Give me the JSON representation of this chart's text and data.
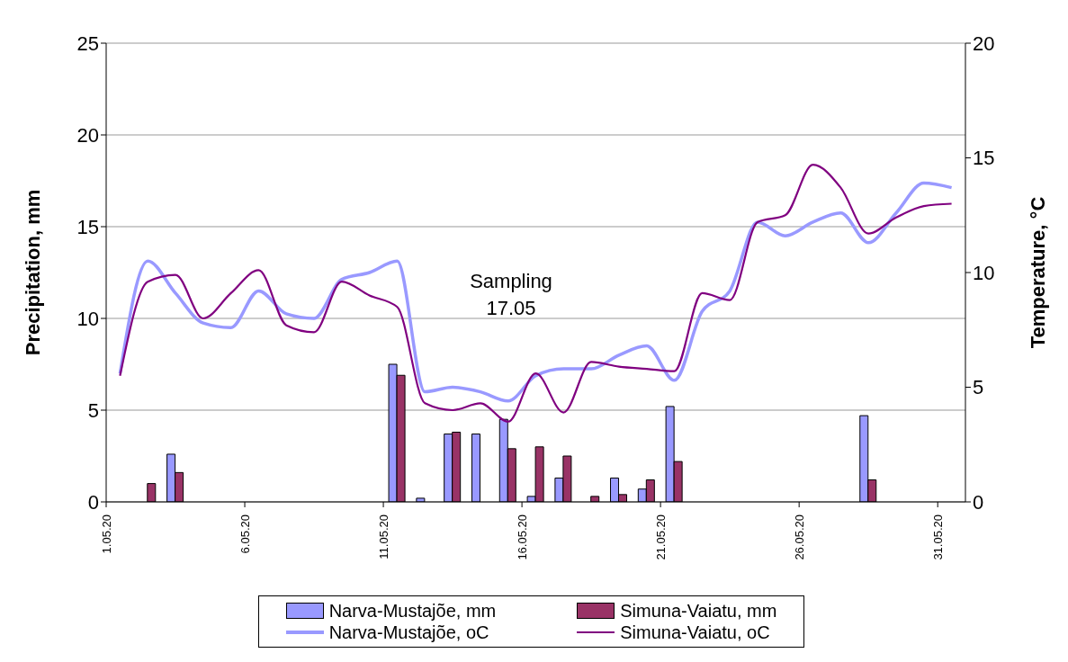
{
  "chart_data": {
    "type": "bar",
    "ylabel": "Precipitation, mm",
    "y2label": "Temperature, °C",
    "x": [
      "--05-01T12:00",
      "--05-02T12:00",
      "--05-03T12:00",
      "--05-04T12:00",
      "--05-05T12:00",
      "--05-06T12:00",
      "--05-07T12:00",
      "--05-08T12:00",
      "--05-09T12:00",
      "--05-10T12:00",
      "--05-11T12:00",
      "--05-12T12:00",
      "--05-13T12:00",
      "--05-14T12:00",
      "--05-15T12:00",
      "--05-16T12:00",
      "--05-17T12:00",
      "--05-18T12:00",
      "--05-19T12:00",
      "--05-20T12:00",
      "--05-21T12:00",
      "--05-22T12:00",
      "--05-23T12:00",
      "--05-24T12:00",
      "--05-25T12:00",
      "--05-26T12:00",
      "--05-27T12:00",
      "--05-28T12:00",
      "--05-29T12:00",
      "--05-30T12:00",
      "--05-31T12:00"
    ],
    "series": [
      {
        "name": "Narva-Mustajõe, mm",
        "color": "#9999ff",
        "values": [
          null,
          null,
          2.6,
          null,
          null,
          null,
          null,
          null,
          null,
          null,
          7.5,
          0.2,
          3.7,
          3.7,
          4.5,
          0.3,
          1.3,
          null,
          1.3,
          0.7,
          5.2,
          null,
          null,
          null,
          null,
          null,
          null,
          4.7,
          null,
          null,
          null
        ]
      },
      {
        "name": "Simuna-Vaiatu, mm",
        "color": "#993366",
        "values": [
          null,
          1.0,
          1.6,
          null,
          null,
          null,
          null,
          null,
          null,
          null,
          6.9,
          null,
          3.8,
          null,
          2.9,
          3.0,
          2.5,
          0.3,
          0.4,
          1.2,
          2.2,
          null,
          null,
          null,
          null,
          null,
          null,
          1.2,
          null,
          null,
          null
        ]
      },
      {
        "name": "Narva-Mustajõe, oC",
        "type": "line",
        "axis": "y2",
        "color": "#9999ff",
        "values": [
          5.6,
          10.5,
          9.1,
          7.8,
          7.6,
          9.2,
          8.2,
          8.0,
          9.7,
          10.0,
          10.5,
          4.8,
          5.0,
          4.8,
          4.4,
          5.5,
          5.8,
          5.8,
          6.4,
          6.8,
          5.3,
          8.3,
          9.2,
          12.2,
          11.6,
          12.2,
          12.6,
          11.3,
          12.6,
          13.9,
          13.7
        ]
      },
      {
        "name": "Simuna-Vaiatu, oC",
        "type": "line",
        "axis": "y2",
        "color": "#800080",
        "values": [
          5.5,
          9.6,
          9.9,
          8.0,
          9.1,
          10.1,
          7.7,
          7.4,
          9.6,
          9.0,
          8.5,
          4.3,
          4.0,
          4.3,
          3.5,
          5.6,
          3.9,
          6.1,
          5.9,
          5.8,
          5.7,
          9.1,
          8.8,
          12.2,
          12.5,
          14.7,
          13.7,
          11.7,
          12.4,
          12.9,
          13.0
        ]
      }
    ],
    "xlim": [
      "--05-01",
      "--06-01"
    ],
    "xticks": [
      {
        "value": "--05-01",
        "label": "1.05.20"
      },
      {
        "value": "--05-06",
        "label": "6.05.20"
      },
      {
        "value": "--05-11",
        "label": "11.05.20"
      },
      {
        "value": "--05-16",
        "label": "16.05.20"
      },
      {
        "value": "--05-21",
        "label": "21.05.20"
      },
      {
        "value": "--05-26",
        "label": "26.05.20"
      },
      {
        "value": "--05-31",
        "label": "31.05.20"
      }
    ],
    "ylim": [
      0,
      25
    ],
    "yticks": [
      0,
      5,
      10,
      15,
      20,
      25
    ],
    "y2lim": [
      0,
      20
    ],
    "y2ticks": [
      0,
      5,
      10,
      15,
      20
    ],
    "grid": "y",
    "legend": "bottom",
    "marker": "none",
    "line_style": "solid",
    "annotations": [
      "Sampling\n17.05"
    ]
  }
}
